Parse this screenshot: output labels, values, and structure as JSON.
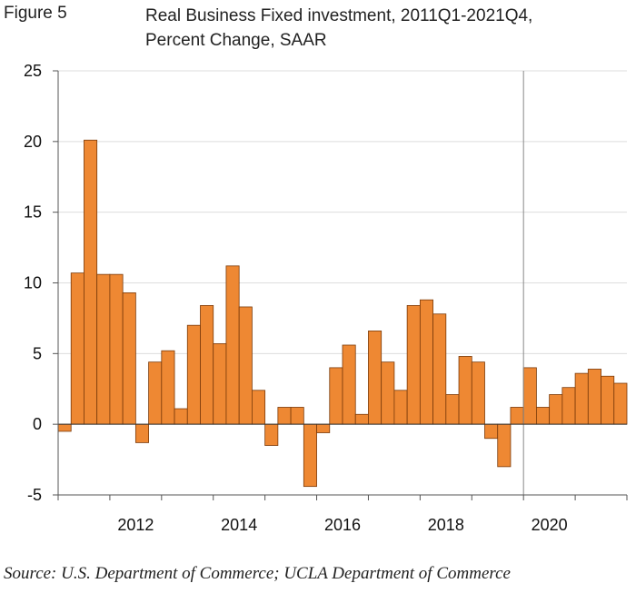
{
  "figure_label": "Figure 5",
  "title_line1": "Real Business Fixed investment, 2011Q1-2021Q4,",
  "title_line2": "Percent Change, SAAR",
  "source": "Source: U.S. Department of Commerce; UCLA Department of Commerce",
  "colors": {
    "bar": "#EE8833",
    "bar_edge": "#7a3a0a",
    "grid": "#dddddd",
    "axis": "#555555",
    "marker": "#888888"
  },
  "chart_data": {
    "type": "bar",
    "title": "Real Business Fixed investment, 2011Q1-2021Q4, Percent Change, SAAR",
    "xlabel": "",
    "ylabel": "",
    "ylim": [
      -5,
      25
    ],
    "yticks": [
      -5,
      0,
      5,
      10,
      15,
      20,
      25
    ],
    "grid": true,
    "xtick_labels": [
      "2012",
      "2014",
      "2016",
      "2018",
      "2020"
    ],
    "categories": [
      "2011Q1",
      "2011Q2",
      "2011Q3",
      "2011Q4",
      "2012Q1",
      "2012Q2",
      "2012Q3",
      "2012Q4",
      "2013Q1",
      "2013Q2",
      "2013Q3",
      "2013Q4",
      "2014Q1",
      "2014Q2",
      "2014Q3",
      "2014Q4",
      "2015Q1",
      "2015Q2",
      "2015Q3",
      "2015Q4",
      "2016Q1",
      "2016Q2",
      "2016Q3",
      "2016Q4",
      "2017Q1",
      "2017Q2",
      "2017Q3",
      "2017Q4",
      "2018Q1",
      "2018Q2",
      "2018Q3",
      "2018Q4",
      "2019Q1",
      "2019Q2",
      "2019Q3",
      "2019Q4",
      "2020Q1",
      "2020Q2",
      "2020Q3",
      "2020Q4",
      "2021Q1",
      "2021Q2",
      "2021Q3",
      "2021Q4"
    ],
    "values": [
      -0.5,
      10.7,
      20.1,
      10.6,
      10.6,
      9.3,
      -1.3,
      4.4,
      5.2,
      1.1,
      7.0,
      8.4,
      5.7,
      11.2,
      8.3,
      2.4,
      -1.5,
      1.2,
      1.2,
      -4.4,
      -0.6,
      4.0,
      5.6,
      0.7,
      6.6,
      4.4,
      2.4,
      8.4,
      8.8,
      7.8,
      2.1,
      4.8,
      4.4,
      -1.0,
      -3.0,
      1.2,
      4.0,
      1.2,
      2.1,
      2.6,
      3.6,
      3.9,
      3.4,
      2.9
    ],
    "vertical_marker_after": "2019Q4"
  }
}
